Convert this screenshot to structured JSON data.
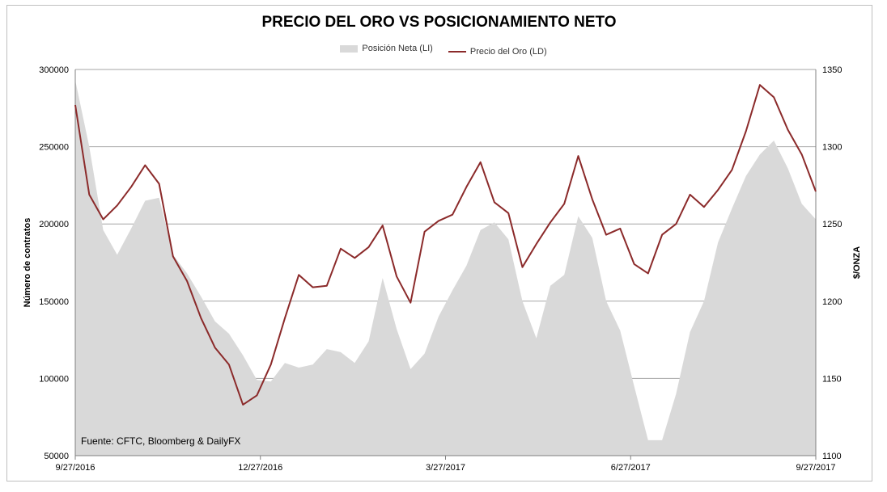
{
  "chart_data": {
    "type": "area",
    "title": "PRECIO DEL ORO VS POSICIONAMIENTO NETO",
    "ylabel_left": "Número  de contratos",
    "ylabel_right": "$/ONZA",
    "note": "Fuente: CFTC, Bloomberg & DailyFX",
    "ylim_left": [
      50000,
      300000
    ],
    "ylim_right": [
      1100,
      1350
    ],
    "yticks_left": [
      "300000",
      "250000",
      "200000",
      "150000",
      "100000",
      "50000"
    ],
    "yticks_right": [
      "1350",
      "1300",
      "1250",
      "1200",
      "1150",
      "1100"
    ],
    "x_ticks": [
      "9/27/2016",
      "12/27/2016",
      "3/27/2017",
      "6/27/2017",
      "9/27/2017"
    ],
    "grid": "horizontal",
    "legend_position": "top",
    "series": [
      {
        "name": "Posición Neta (LI)",
        "axis": "left",
        "color": "#d9d9d9",
        "values": [
          293000,
          250000,
          196000,
          180000,
          197000,
          215000,
          217000,
          180000,
          168000,
          153000,
          137000,
          129000,
          115000,
          99000,
          98000,
          110000,
          107000,
          109000,
          119000,
          117000,
          110000,
          124000,
          165000,
          132000,
          106000,
          116000,
          140000,
          157000,
          173000,
          196000,
          201000,
          190000,
          150000,
          126000,
          160000,
          167000,
          205000,
          191000,
          150000,
          131000,
          95000,
          60000,
          60000,
          90000,
          130000,
          150000,
          188000,
          210000,
          231000,
          245000,
          254000,
          236000,
          213000,
          203000
        ]
      },
      {
        "name": "Precio del Oro (LD)",
        "axis": "right",
        "color": "#8b2a2a",
        "values": [
          1327,
          1269,
          1253,
          1262,
          1274,
          1288,
          1276,
          1229,
          1213,
          1189,
          1170,
          1159,
          1133,
          1139,
          1159,
          1189,
          1217,
          1209,
          1210,
          1234,
          1228,
          1235,
          1249,
          1216,
          1199,
          1245,
          1252,
          1256,
          1274,
          1290,
          1264,
          1257,
          1222,
          1237,
          1251,
          1263,
          1294,
          1266,
          1243,
          1247,
          1224,
          1218,
          1243,
          1250,
          1269,
          1261,
          1272,
          1285,
          1310,
          1340,
          1332,
          1311,
          1295,
          1271
        ]
      }
    ]
  }
}
